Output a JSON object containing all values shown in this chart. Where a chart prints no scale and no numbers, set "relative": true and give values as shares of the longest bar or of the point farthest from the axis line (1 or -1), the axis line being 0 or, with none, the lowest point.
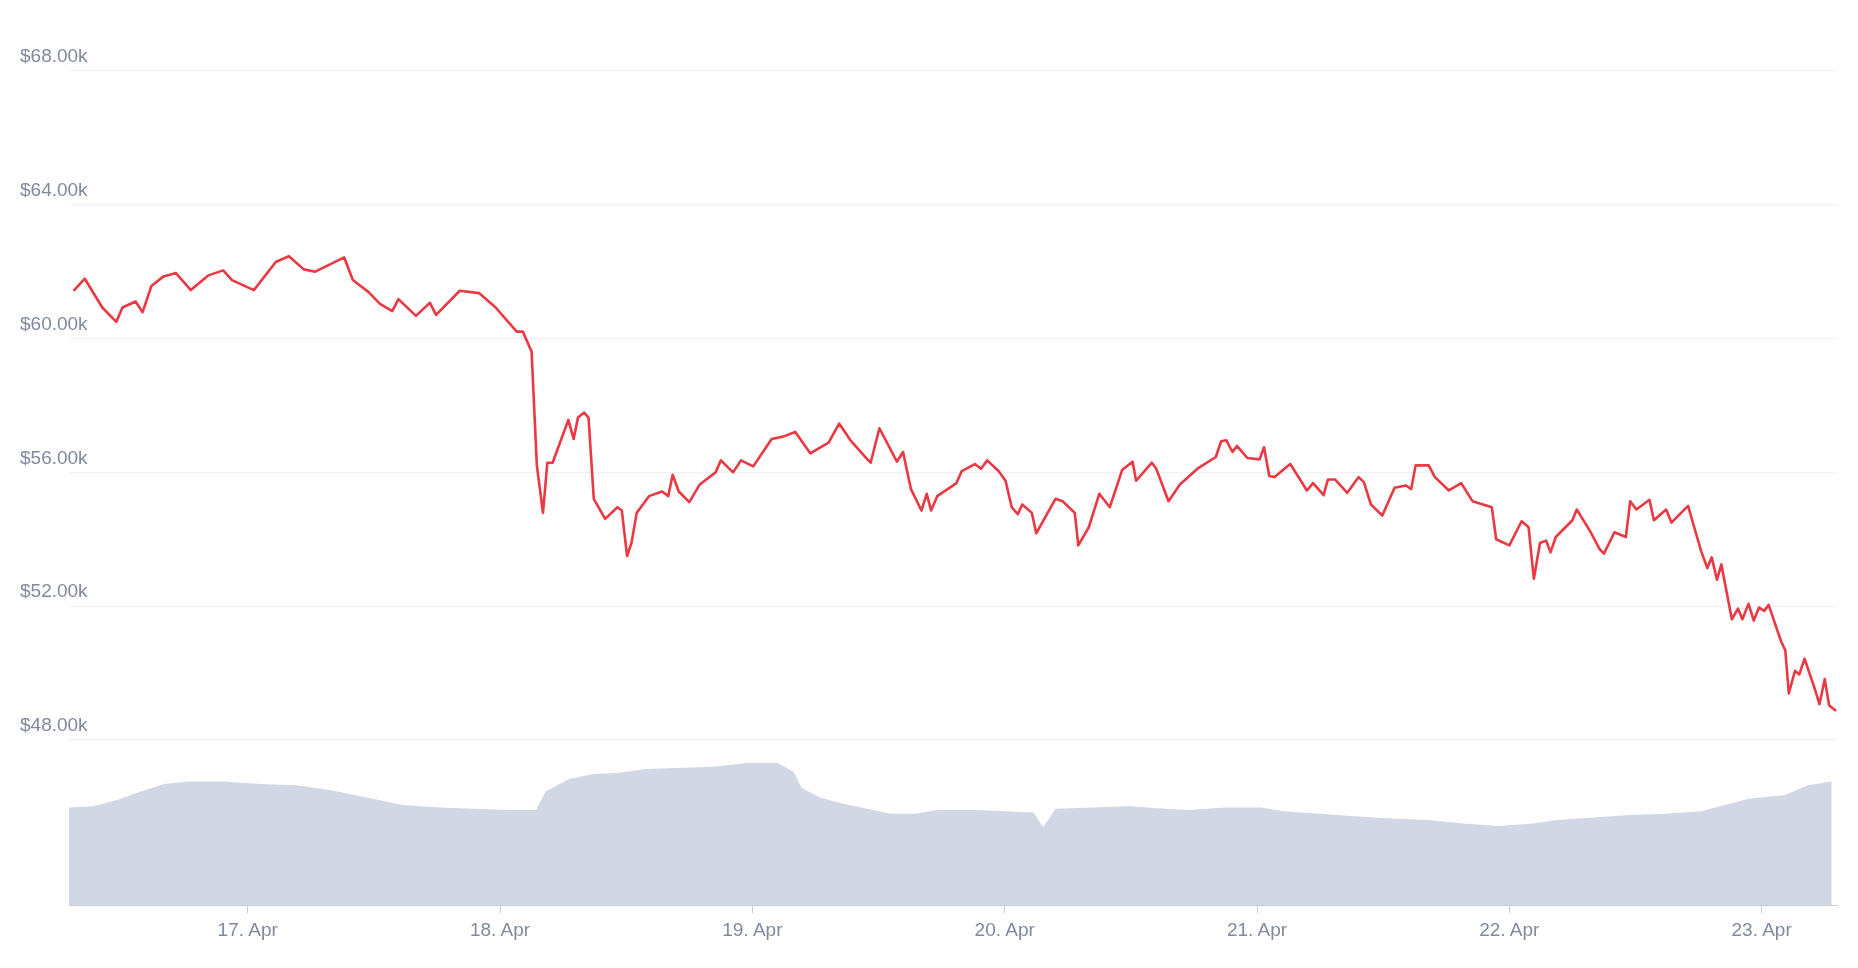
{
  "chart_data": [
    {
      "type": "line",
      "tick_labels": "y",
      "grid": "y",
      "xlim": [
        "--04-16T07:00",
        "--04-23T07:10"
      ],
      "xticks": [
        {
          "value": "--04-17",
          "label": "17. Apr"
        },
        {
          "value": "--04-18",
          "label": "18. Apr"
        },
        {
          "value": "--04-19",
          "label": "19. Apr"
        },
        {
          "value": "--04-20",
          "label": "20. Apr"
        },
        {
          "value": "--04-21",
          "label": "21. Apr"
        },
        {
          "value": "--04-22",
          "label": "22. Apr"
        },
        {
          "value": "--04-23",
          "label": "23. Apr"
        }
      ],
      "ylim": [
        48000,
        68000
      ],
      "yticks": [
        {
          "value": 48000,
          "label": "$48.00k"
        },
        {
          "value": 52000,
          "label": "$52.00k"
        },
        {
          "value": 56000,
          "label": "$56.00k"
        },
        {
          "value": 60000,
          "label": "$60.00k"
        },
        {
          "value": 64000,
          "label": "$64.00k"
        },
        {
          "value": 68000,
          "label": "$68.00k"
        }
      ],
      "x": [
        "--04-16T07:30",
        "--04-16T08:30",
        "--04-16T10:10",
        "--04-16T11:30",
        "--04-16T12:05",
        "--04-16T13:20",
        "--04-16T14:00",
        "--04-16T14:50",
        "--04-16T16:00",
        "--04-16T17:10",
        "--04-16T18:35",
        "--04-16T20:15",
        "--04-16T21:40",
        "--04-16T22:30",
        "--04-17T00:35",
        "--04-17T02:40",
        "--04-17T03:55",
        "--04-17T05:20",
        "--04-17T06:25",
        "--04-17T07:35",
        "--04-17T09:10",
        "--04-17T10:00",
        "--04-17T11:30",
        "--04-17T12:35",
        "--04-17T13:45",
        "--04-17T14:20",
        "--04-17T16:00",
        "--04-17T17:20",
        "--04-17T17:55",
        "--04-17T20:10",
        "--04-17T22:00",
        "--04-17T23:35",
        "--04-18T01:35",
        "--04-18T02:10",
        "--04-18T03:00",
        "--04-18T03:30",
        "--04-18T04:05",
        "--04-18T04:30",
        "--04-18T05:00",
        "--04-18T06:30",
        "--04-18T07:00",
        "--04-18T07:25",
        "--04-18T08:00",
        "--04-18T08:25",
        "--04-18T08:55",
        "--04-18T10:00",
        "--04-18T11:10",
        "--04-18T11:35",
        "--04-18T12:05",
        "--04-18T12:30",
        "--04-18T13:00",
        "--04-18T14:10",
        "--04-18T15:25",
        "--04-18T16:00",
        "--04-18T16:25",
        "--04-18T17:00",
        "--04-18T18:00",
        "--04-18T19:00",
        "--04-18T20:30",
        "--04-18T21:00",
        "--04-18T22:10",
        "--04-18T22:55",
        "--04-19T00:05",
        "--04-19T01:50",
        "--04-19T02:55",
        "--04-19T04:05",
        "--04-19T05:30",
        "--04-19T07:15",
        "--04-19T08:15",
        "--04-19T09:20",
        "--04-19T10:50",
        "--04-19T11:15",
        "--04-19T12:05",
        "--04-19T13:45",
        "--04-19T14:20",
        "--04-19T15:05",
        "--04-19T16:05",
        "--04-19T16:35",
        "--04-19T17:00",
        "--04-19T17:35",
        "--04-19T19:25",
        "--04-19T19:55",
        "--04-19T21:10",
        "--04-19T21:45",
        "--04-19T22:20",
        "--04-19T23:25",
        "--04-20T00:05",
        "--04-20T00:40",
        "--04-20T01:15",
        "--04-20T01:40",
        "--04-20T02:35",
        "--04-20T03:00",
        "--04-20T04:50",
        "--04-20T05:30",
        "--04-20T06:40",
        "--04-20T07:00",
        "--04-20T08:00",
        "--04-20T09:00",
        "--04-20T10:00",
        "--04-20T11:10",
        "--04-20T12:10",
        "--04-20T12:30",
        "--04-20T14:00",
        "--04-20T14:25",
        "--04-20T15:35",
        "--04-20T16:40",
        "--04-20T18:20",
        "--04-20T20:05",
        "--04-20T20:35",
        "--04-20T21:05",
        "--04-20T21:40",
        "--04-20T22:05",
        "--04-20T23:05",
        "--04-21T00:15",
        "--04-21T00:40",
        "--04-21T01:10",
        "--04-21T01:40",
        "--04-21T03:10",
        "--04-21T04:45",
        "--04-21T05:20",
        "--04-21T06:20",
        "--04-21T06:45",
        "--04-21T07:25",
        "--04-21T08:35",
        "--04-21T09:40",
        "--04-21T10:10",
        "--04-21T10:50",
        "--04-21T11:55",
        "--04-21T13:05",
        "--04-21T14:10",
        "--04-21T14:40",
        "--04-21T15:05",
        "--04-21T16:20",
        "--04-21T16:55",
        "--04-21T18:15",
        "--04-21T19:25",
        "--04-21T20:30",
        "--04-21T22:20",
        "--04-21T22:45",
        "--04-22T00:00",
        "--04-22T01:10",
        "--04-22T01:50",
        "--04-22T02:20",
        "--04-22T02:55",
        "--04-22T03:30",
        "--04-22T03:55",
        "--04-22T04:25",
        "--04-22T06:00",
        "--04-22T06:25",
        "--04-22T07:40",
        "--04-22T08:35",
        "--04-22T09:00",
        "--04-22T10:00",
        "--04-22T11:05",
        "--04-22T11:30",
        "--04-22T12:05",
        "--04-22T13:20",
        "--04-22T13:45",
        "--04-22T14:55",
        "--04-22T15:25",
        "--04-22T17:00",
        "--04-22T18:15",
        "--04-22T18:50",
        "--04-22T19:15",
        "--04-22T19:45",
        "--04-22T20:10",
        "--04-22T21:10",
        "--04-22T21:45",
        "--04-22T22:10",
        "--04-22T22:45",
        "--04-22T23:15",
        "--04-22T23:45",
        "--04-23T00:15",
        "--04-23T00:40",
        "--04-23T01:50",
        "--04-23T02:15",
        "--04-23T02:35",
        "--04-23T03:10",
        "--04-23T03:35",
        "--04-23T04:05",
        "--04-23T05:05",
        "--04-23T05:30",
        "--04-23T06:00",
        "--04-23T06:25",
        "--04-23T07:00"
      ],
      "series": [
        {
          "color": "#ea3943",
          "values": [
            61450,
            61790,
            60930,
            60500,
            60930,
            61110,
            60790,
            61570,
            61860,
            61960,
            61450,
            61890,
            62040,
            61750,
            61450,
            62290,
            62460,
            62070,
            62000,
            62180,
            62430,
            61750,
            61390,
            61040,
            60820,
            61180,
            60680,
            61070,
            60710,
            61430,
            61360,
            60930,
            60210,
            60210,
            59610,
            56210,
            54790,
            56290,
            56290,
            57570,
            57000,
            57640,
            57790,
            57640,
            55210,
            54610,
            54960,
            54860,
            53500,
            53890,
            54790,
            55290,
            55430,
            55290,
            55930,
            55430,
            55110,
            55640,
            56000,
            56360,
            56000,
            56360,
            56180,
            57000,
            57070,
            57210,
            56570,
            56890,
            57460,
            56960,
            56430,
            56290,
            57320,
            56320,
            56610,
            55500,
            54860,
            55360,
            54860,
            55290,
            55680,
            56040,
            56250,
            56110,
            56360,
            56040,
            55750,
            54960,
            54750,
            55040,
            54790,
            54180,
            55210,
            55140,
            54790,
            53820,
            54360,
            55360,
            54960,
            56070,
            56320,
            55750,
            56290,
            56110,
            55140,
            55640,
            56110,
            56460,
            56930,
            56960,
            56610,
            56790,
            56430,
            56390,
            56750,
            55890,
            55860,
            56250,
            55460,
            55680,
            55320,
            55790,
            55790,
            55390,
            55860,
            55710,
            55040,
            54710,
            55540,
            55610,
            55500,
            56210,
            56210,
            55860,
            55460,
            55680,
            55140,
            54960,
            54000,
            53820,
            54540,
            54360,
            52820,
            53890,
            53960,
            53610,
            54070,
            54570,
            54890,
            54250,
            53710,
            53570,
            54210,
            54070,
            55140,
            54890,
            55180,
            54570,
            54890,
            54500,
            55000,
            53640,
            53140,
            53460,
            52790,
            53250,
            51610,
            51930,
            51610,
            52070,
            51570,
            51960,
            51860,
            52040,
            50960,
            50680,
            49390,
            50070,
            49960,
            50430,
            49500,
            49070,
            49820,
            49040,
            48890
          ]
        }
      ]
    },
    {
      "type": "area",
      "relative": true,
      "tick_labels": "x",
      "xlim": [
        "--04-16T07:00",
        "--04-23T07:10"
      ],
      "xticks": [
        {
          "value": "--04-17",
          "label": "17. Apr"
        },
        {
          "value": "--04-18",
          "label": "18. Apr"
        },
        {
          "value": "--04-19",
          "label": "19. Apr"
        },
        {
          "value": "--04-20",
          "label": "20. Apr"
        },
        {
          "value": "--04-21",
          "label": "21. Apr"
        },
        {
          "value": "--04-22",
          "label": "22. Apr"
        },
        {
          "value": "--04-23",
          "label": "23. Apr"
        }
      ],
      "x": [
        "--04-16T07:00",
        "--04-16T09:20",
        "--04-16T11:35",
        "--04-16T13:50",
        "--04-16T16:05",
        "--04-16T18:20",
        "--04-16T21:45",
        "--04-17T01:10",
        "--04-17T04:35",
        "--04-17T07:55",
        "--04-17T11:20",
        "--04-17T14:45",
        "--04-17T18:10",
        "--04-17T21:30",
        "--04-18T00:55",
        "--04-18T03:25",
        "--04-18T04:20",
        "--04-18T06:35",
        "--04-18T08:50",
        "--04-18T11:05",
        "--04-18T13:55",
        "--04-18T16:45",
        "--04-18T20:10",
        "--04-18T23:35",
        "--04-19T02:25",
        "--04-19T03:55",
        "--04-19T04:40",
        "--04-19T06:25",
        "--04-19T08:40",
        "--04-19T10:55",
        "--04-19T13:10",
        "--04-19T15:25",
        "--04-19T17:40",
        "--04-19T21:05",
        "--04-19T23:55",
        "--04-20T02:45",
        "--04-20T03:40",
        "--04-20T04:50",
        "--04-20T08:25",
        "--04-20T11:50",
        "--04-20T15:15",
        "--04-20T17:30",
        "--04-20T20:55",
        "--04-21T00:20",
        "--04-21T02:35",
        "--04-21T06:00",
        "--04-21T09:20",
        "--04-21T12:45",
        "--04-21T16:10",
        "--04-21T19:35",
        "--04-21T22:55",
        "--04-22T02:20",
        "--04-22T04:35",
        "--04-22T08:00",
        "--04-22T11:25",
        "--04-22T14:50",
        "--04-22T18:15",
        "--04-22T20:30",
        "--04-22T22:45",
        "--04-23T02:10",
        "--04-23T04:25",
        "--04-23T06:40"
      ],
      "series": [
        {
          "color": "#d1d7e4",
          "values": [
            0.687,
            0.696,
            0.739,
            0.8,
            0.852,
            0.87,
            0.87,
            0.852,
            0.843,
            0.809,
            0.757,
            0.704,
            0.687,
            0.678,
            0.67,
            0.67,
            0.8,
            0.887,
            0.922,
            0.93,
            0.957,
            0.965,
            0.974,
            1,
            1,
            0.939,
            0.826,
            0.757,
            0.713,
            0.678,
            0.643,
            0.643,
            0.67,
            0.67,
            0.661,
            0.652,
            0.548,
            0.678,
            0.687,
            0.696,
            0.678,
            0.67,
            0.687,
            0.687,
            0.661,
            0.643,
            0.626,
            0.609,
            0.6,
            0.574,
            0.557,
            0.574,
            0.6,
            0.617,
            0.635,
            0.643,
            0.661,
            0.704,
            0.748,
            0.774,
            0.843,
            0.87
          ]
        }
      ]
    }
  ]
}
